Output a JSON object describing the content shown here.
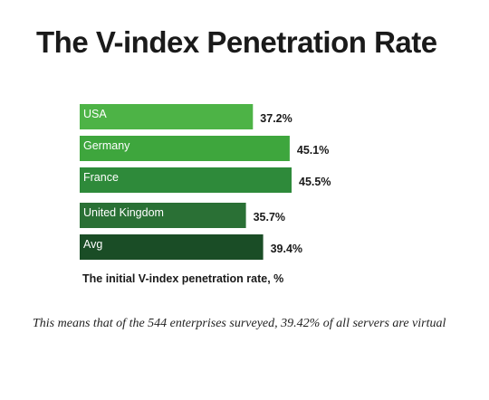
{
  "chart_data": {
    "type": "bar",
    "orientation": "horizontal",
    "title": "The V-index Penetration Rate",
    "xlabel": "The initial V-index penetration rate, %",
    "ylabel": "",
    "categories": [
      "USA",
      "Germany",
      "France",
      "United Kingdom",
      "Avg"
    ],
    "values": [
      37.2,
      45.1,
      45.5,
      35.7,
      39.4
    ],
    "value_labels": [
      "37.2%",
      "45.1%",
      "45.5%",
      "35.7%",
      "39.4%"
    ],
    "colors": [
      "#4db346",
      "#3ea63d",
      "#2e8a3a",
      "#2a7035",
      "#1a4d26"
    ],
    "xlim": [
      0,
      45.5
    ],
    "grid": false,
    "legend": "none"
  },
  "footnote": "This means that of the 544 enterprises surveyed, 39.42% of all servers are virtual"
}
